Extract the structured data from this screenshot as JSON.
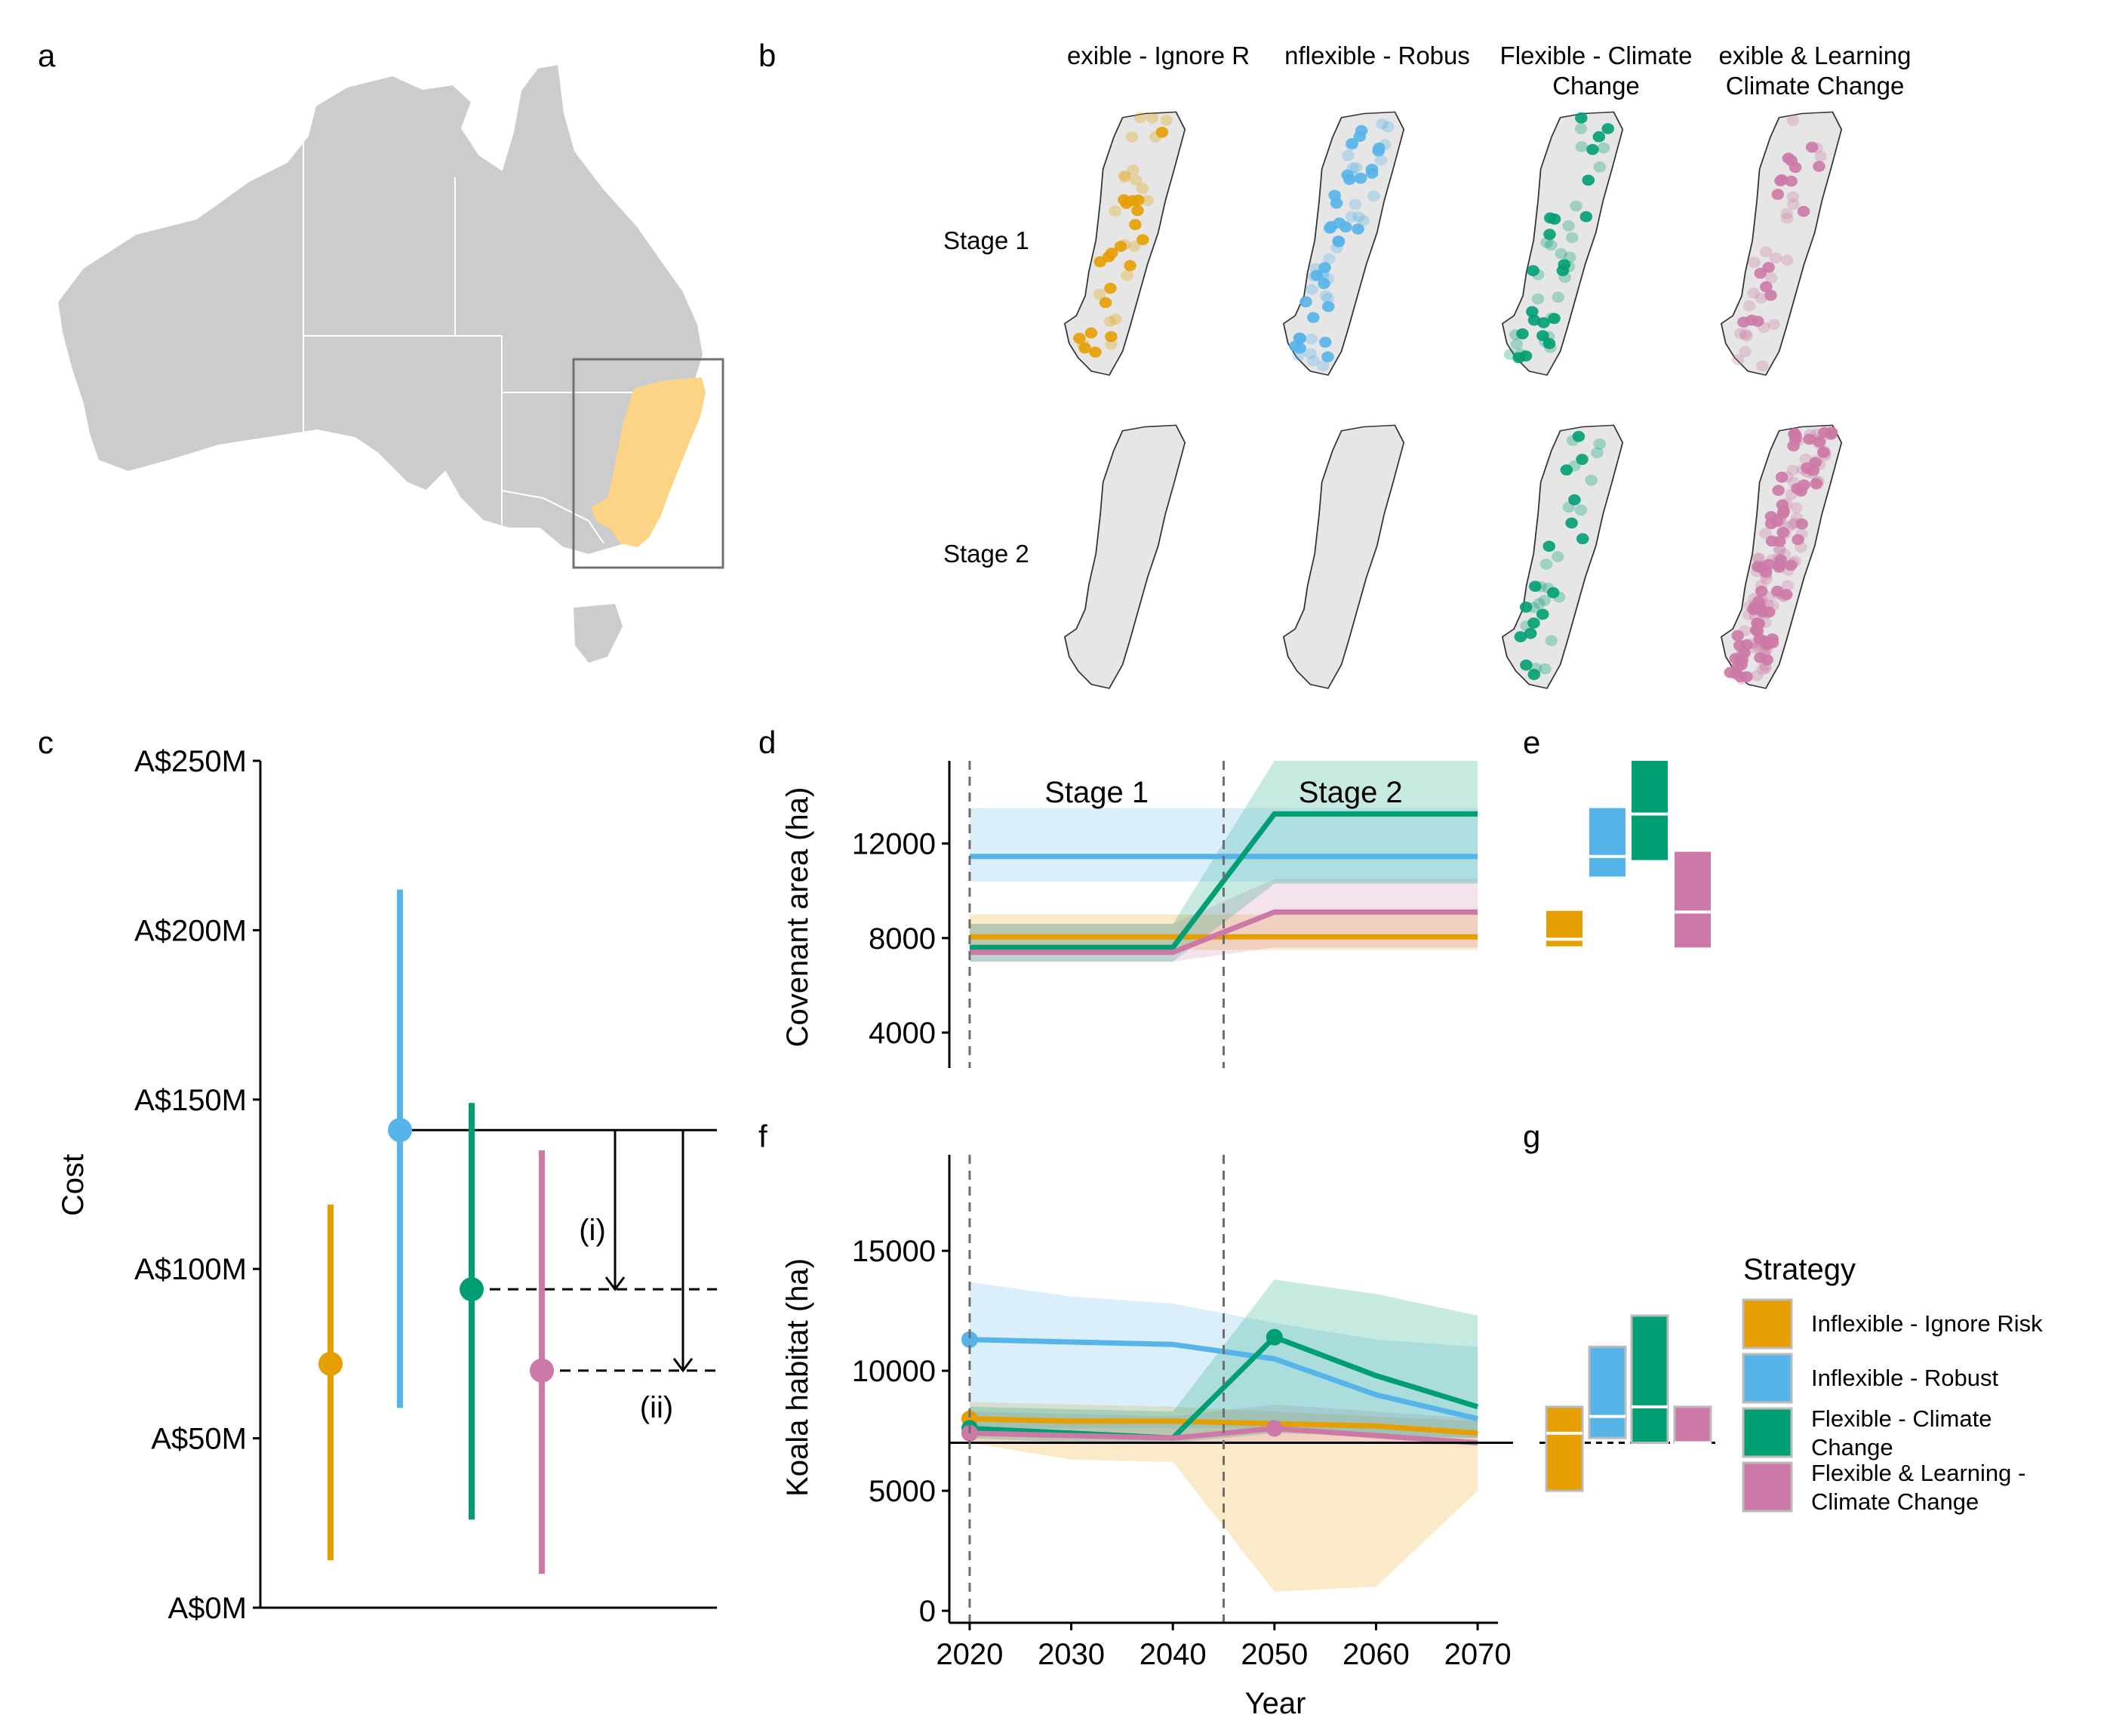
{
  "panels": {
    "a": {
      "label": "a",
      "region_colors": {
        "land": "#cccccc",
        "study_area": "#fdd486",
        "box": "#707070"
      }
    },
    "b": {
      "label": "b",
      "columns": [
        "exible - Ignore R",
        "nflexible - Robus",
        "Flexible - Climate\nChange",
        "exible & Learning\nClimate Change"
      ],
      "rows": [
        "Stage 1",
        "Stage 2"
      ],
      "map_fill": "#e6e6e6"
    },
    "c": {
      "label": "c"
    },
    "d": {
      "label": "d"
    },
    "e": {
      "label": "e"
    },
    "f": {
      "label": "f"
    },
    "g": {
      "label": "g"
    }
  },
  "strategy_colors": {
    "Inflexible - Ignore Risk": "#E69F00",
    "Inflexible - Robust": "#56B4E9",
    "Flexible - Climate Change": "#009E73",
    "Flexible & Learning - Climate Change": "#CC79A7"
  },
  "legend": {
    "title": "Strategy",
    "items": [
      {
        "label": "Inflexible - Ignore Risk",
        "lines": [
          "Inflexible - Ignore Risk"
        ],
        "color": "#E69F00"
      },
      {
        "label": "Inflexible - Robust",
        "lines": [
          "Inflexible - Robust"
        ],
        "color": "#56B4E9"
      },
      {
        "label": "Flexible - Climate Change",
        "lines": [
          "Flexible - Climate",
          "Change"
        ],
        "color": "#009E73"
      },
      {
        "label": "Flexible & Learning - Climate Change",
        "lines": [
          "Flexible & Learning -",
          "Climate Change"
        ],
        "color": "#CC79A7"
      }
    ]
  },
  "chart_data": [
    {
      "id": "c",
      "type": "pointrange",
      "title": "",
      "xlabel": "",
      "ylabel": "Cost",
      "ylim": [
        0,
        250
      ],
      "ytick_values": [
        0,
        50,
        100,
        150,
        200,
        250
      ],
      "ytick_labels": [
        "A$0M",
        "A$50M",
        "A$100M",
        "A$150M",
        "A$200M",
        "A$250M"
      ],
      "series": [
        {
          "name": "Inflexible - Ignore Risk",
          "mid": 72,
          "low": 14,
          "high": 119
        },
        {
          "name": "Inflexible - Robust",
          "mid": 141,
          "low": 59,
          "high": 212
        },
        {
          "name": "Flexible - Climate Change",
          "mid": 94,
          "low": 26,
          "high": 149
        },
        {
          "name": "Flexible & Learning - Climate Change",
          "mid": 70,
          "low": 10,
          "high": 135
        }
      ],
      "annotations": [
        "(i)",
        "(ii)"
      ]
    },
    {
      "id": "d",
      "type": "line",
      "xlabel": "",
      "ylabel": "Covenant area (ha)",
      "xlim": [
        2018,
        2070
      ],
      "ylim": [
        2500,
        15500
      ],
      "yticks": [
        4000,
        8000,
        12000
      ],
      "stage_lines": [
        2020,
        2045
      ],
      "stage_labels": [
        "Stage 1",
        "Stage 2"
      ],
      "series": [
        {
          "name": "Inflexible - Ignore Risk",
          "x": [
            2020,
            2040,
            2050,
            2070
          ],
          "y": [
            8050,
            8050,
            8050,
            8050
          ],
          "low": [
            7500,
            7500,
            7500,
            7500
          ],
          "high": [
            9000,
            9000,
            9000,
            9000
          ]
        },
        {
          "name": "Inflexible - Robust",
          "x": [
            2020,
            2040,
            2050,
            2070
          ],
          "y": [
            11450,
            11450,
            11450,
            11450
          ],
          "low": [
            10400,
            10400,
            10400,
            10400
          ],
          "high": [
            13500,
            13500,
            13500,
            13500
          ]
        },
        {
          "name": "Flexible - Climate Change",
          "x": [
            2020,
            2040,
            2050,
            2070
          ],
          "y": [
            7600,
            7600,
            13250,
            13250
          ],
          "low": [
            7000,
            7000,
            10300,
            10300
          ],
          "high": [
            8600,
            8600,
            15500,
            15500
          ]
        },
        {
          "name": "Flexible & Learning - Climate Change",
          "x": [
            2020,
            2040,
            2050,
            2070
          ],
          "y": [
            7400,
            7400,
            9100,
            9100
          ],
          "low": [
            7000,
            7000,
            7600,
            7600
          ],
          "high": [
            8600,
            8600,
            10500,
            10500
          ]
        }
      ]
    },
    {
      "id": "e",
      "type": "box",
      "ylim": [
        2500,
        15500
      ],
      "series": [
        {
          "name": "Inflexible - Ignore Risk",
          "low": 7650,
          "mid": 7950,
          "high": 9150
        },
        {
          "name": "Inflexible - Robust",
          "low": 10600,
          "mid": 11450,
          "high": 13500
        },
        {
          "name": "Flexible - Climate Change",
          "low": 11300,
          "mid": 13250,
          "high": 15500
        },
        {
          "name": "Flexible & Learning - Climate Change",
          "low": 7600,
          "mid": 9100,
          "high": 11650
        }
      ]
    },
    {
      "id": "f",
      "type": "line",
      "xlabel": "Year",
      "ylabel": "Koala habitat (ha)",
      "xlim": [
        2018,
        2072
      ],
      "ylim": [
        -500,
        19000
      ],
      "xticks": [
        2020,
        2030,
        2040,
        2050,
        2060,
        2070
      ],
      "yticks": [
        0,
        5000,
        10000,
        15000
      ],
      "baseline": 7000,
      "stage_lines": [
        2020,
        2045
      ],
      "series": [
        {
          "name": "Inflexible - Ignore Risk",
          "x": [
            2020,
            2030,
            2040,
            2050,
            2060,
            2070
          ],
          "y": [
            8000,
            7900,
            7900,
            7800,
            7700,
            7400
          ],
          "low": [
            7000,
            6300,
            6200,
            800,
            1000,
            5000
          ],
          "high": [
            8700,
            8600,
            8500,
            8300,
            8100,
            7900
          ],
          "markers": [
            2020
          ]
        },
        {
          "name": "Inflexible - Robust",
          "x": [
            2020,
            2030,
            2040,
            2050,
            2060,
            2070
          ],
          "y": [
            11300,
            11200,
            11100,
            10500,
            9000,
            8000
          ],
          "low": [
            7600,
            7600,
            7600,
            7600,
            7300,
            7200
          ],
          "high": [
            13700,
            13100,
            12800,
            12000,
            11300,
            11000
          ],
          "markers": [
            2020
          ]
        },
        {
          "name": "Flexible - Climate Change",
          "x": [
            2020,
            2030,
            2040,
            2050,
            2060,
            2070
          ],
          "y": [
            7600,
            7400,
            7200,
            11400,
            9800,
            8500
          ],
          "low": [
            7200,
            7000,
            7000,
            7400,
            7300,
            7200
          ],
          "high": [
            8500,
            8400,
            8300,
            13800,
            13200,
            12300
          ],
          "markers": [
            2020,
            2050
          ]
        },
        {
          "name": "Flexible & Learning - Climate Change",
          "x": [
            2020,
            2030,
            2040,
            2050,
            2060,
            2070
          ],
          "y": [
            7400,
            7300,
            7200,
            7600,
            7300,
            7000
          ],
          "low": [
            7000,
            7000,
            7000,
            7000,
            7000,
            6900
          ],
          "high": [
            8300,
            8200,
            8100,
            8600,
            8300,
            8000
          ],
          "markers": [
            2020,
            2050
          ]
        }
      ]
    },
    {
      "id": "g",
      "type": "box",
      "ylim": [
        -500,
        19000
      ],
      "baseline": 7000,
      "series": [
        {
          "name": "Inflexible - Ignore Risk",
          "low": 5000,
          "mid": 7400,
          "high": 8500
        },
        {
          "name": "Inflexible - Robust",
          "low": 7200,
          "mid": 8100,
          "high": 11000
        },
        {
          "name": "Flexible - Climate Change",
          "low": 7000,
          "mid": 8500,
          "high": 12300
        },
        {
          "name": "Flexible & Learning - Climate Change",
          "low": 7000,
          "mid": 7000,
          "high": 8500
        }
      ]
    }
  ]
}
